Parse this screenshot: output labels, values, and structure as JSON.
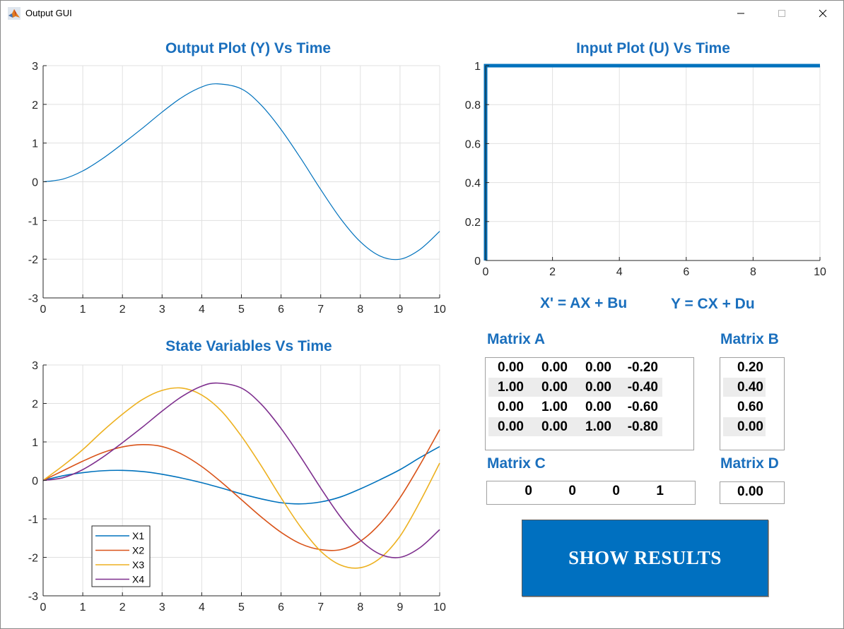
{
  "window": {
    "title": "Output GUI",
    "icon": "matlab-icon"
  },
  "plots": {
    "output": {
      "title": "Output Plot (Y) Vs Time"
    },
    "input": {
      "title": "Input Plot (U) Vs Time"
    },
    "state": {
      "title": "State Variables Vs Time"
    }
  },
  "equations": {
    "state": "X' = AX + Bu",
    "output": "Y  = CX + Du"
  },
  "matrices": {
    "A": {
      "label": "Matrix A",
      "rows": [
        [
          "0.00",
          "0.00",
          "0.00",
          "-0.20"
        ],
        [
          "1.00",
          "0.00",
          "0.00",
          "-0.40"
        ],
        [
          "0.00",
          "1.00",
          "0.00",
          "-0.60"
        ],
        [
          "0.00",
          "0.00",
          "1.00",
          "-0.80"
        ]
      ]
    },
    "B": {
      "label": "Matrix B",
      "rows": [
        [
          "0.20"
        ],
        [
          "0.40"
        ],
        [
          "0.60"
        ],
        [
          "0.00"
        ]
      ]
    },
    "C": {
      "label": "Matrix C",
      "rows": [
        [
          "0",
          "0",
          "0",
          "1"
        ]
      ]
    },
    "D": {
      "label": "Matrix D",
      "rows": [
        [
          "0.00"
        ]
      ]
    }
  },
  "buttons": {
    "show_results": "SHOW RESULTS"
  },
  "chart_data": [
    {
      "type": "line",
      "title": "Output Plot (Y) Vs Time",
      "xlabel": "",
      "ylabel": "",
      "xlim": [
        0,
        10
      ],
      "ylim": [
        -3,
        3
      ],
      "xticks": [
        "0",
        "1",
        "2",
        "3",
        "4",
        "5",
        "6",
        "7",
        "8",
        "9",
        "10"
      ],
      "yticks": [
        "3",
        "2",
        "1",
        "0",
        "-1",
        "-2",
        "-3"
      ],
      "grid": true,
      "series": [
        {
          "color": "#0072bd",
          "x": [
            0,
            0.5,
            1,
            1.5,
            2,
            2.5,
            3,
            3.5,
            4,
            4.4,
            5,
            5.5,
            6,
            6.5,
            7,
            7.5,
            8,
            8.5,
            9,
            9.5,
            10
          ],
          "values": [
            0,
            0.07,
            0.28,
            0.6,
            0.98,
            1.38,
            1.8,
            2.18,
            2.45,
            2.53,
            2.4,
            1.98,
            1.35,
            0.6,
            -0.2,
            -0.95,
            -1.55,
            -1.92,
            -2,
            -1.75,
            -1.28
          ]
        }
      ]
    },
    {
      "type": "line",
      "title": "Input Plot (U) Vs Time",
      "xlabel": "",
      "ylabel": "",
      "xlim": [
        0,
        10
      ],
      "ylim": [
        0,
        1
      ],
      "xticks": [
        "0",
        "2",
        "4",
        "6",
        "8",
        "10"
      ],
      "yticks": [
        "1",
        "0.8",
        "0.6",
        "0.4",
        "0.2",
        "0"
      ],
      "grid": true,
      "series": [
        {
          "color": "#0072bd",
          "x": [
            0,
            0,
            10
          ],
          "values": [
            0,
            1,
            1
          ]
        }
      ]
    },
    {
      "type": "line",
      "title": "State Variables Vs Time",
      "xlabel": "",
      "ylabel": "",
      "xlim": [
        0,
        10
      ],
      "ylim": [
        -3,
        3
      ],
      "xticks": [
        "0",
        "1",
        "2",
        "3",
        "4",
        "5",
        "6",
        "7",
        "8",
        "9",
        "10"
      ],
      "yticks": [
        "3",
        "2",
        "1",
        "0",
        "-1",
        "-2",
        "-3"
      ],
      "grid": true,
      "legend": "bottom-left",
      "series": [
        {
          "name": "X1",
          "color": "#0072bd",
          "x": [
            0,
            0.5,
            1,
            1.5,
            2,
            2.5,
            3,
            3.5,
            4,
            4.5,
            5,
            5.5,
            6,
            6.5,
            7,
            7.5,
            8,
            8.5,
            9,
            9.5,
            10
          ],
          "values": [
            0,
            0.12,
            0.2,
            0.25,
            0.26,
            0.23,
            0.16,
            0.06,
            -0.06,
            -0.2,
            -0.35,
            -0.48,
            -0.58,
            -0.61,
            -0.56,
            -0.43,
            -0.22,
            0.02,
            0.28,
            0.59,
            0.88
          ]
        },
        {
          "name": "X2",
          "color": "#d95319",
          "x": [
            0,
            0.5,
            1,
            1.5,
            2,
            2.5,
            3,
            3.5,
            4,
            4.5,
            5,
            5.5,
            6,
            6.5,
            7,
            7.5,
            8,
            8.5,
            9,
            9.5,
            10
          ],
          "values": [
            0,
            0.25,
            0.5,
            0.72,
            0.87,
            0.93,
            0.88,
            0.68,
            0.36,
            -0.05,
            -0.5,
            -0.95,
            -1.35,
            -1.65,
            -1.8,
            -1.8,
            -1.58,
            -1.12,
            -0.45,
            0.4,
            1.32
          ]
        },
        {
          "name": "X3",
          "color": "#edb120",
          "x": [
            0,
            0.5,
            1,
            1.5,
            2,
            2.5,
            3,
            3.5,
            4,
            4.5,
            5,
            5.5,
            6,
            6.5,
            7,
            7.5,
            8,
            8.5,
            9,
            9.5,
            10
          ],
          "values": [
            0,
            0.38,
            0.8,
            1.28,
            1.72,
            2.1,
            2.34,
            2.4,
            2.22,
            1.8,
            1.15,
            0.38,
            -0.45,
            -1.22,
            -1.84,
            -2.2,
            -2.27,
            -2.02,
            -1.45,
            -0.56,
            0.45
          ]
        },
        {
          "name": "X4",
          "color": "#7e2f8e",
          "x": [
            0,
            0.5,
            1,
            1.5,
            2,
            2.5,
            3,
            3.5,
            4,
            4.4,
            5,
            5.5,
            6,
            6.5,
            7,
            7.5,
            8,
            8.5,
            9,
            9.5,
            10
          ],
          "values": [
            0,
            0.07,
            0.28,
            0.6,
            0.98,
            1.38,
            1.8,
            2.18,
            2.45,
            2.53,
            2.4,
            1.98,
            1.35,
            0.6,
            -0.2,
            -0.95,
            -1.55,
            -1.92,
            -2,
            -1.75,
            -1.28
          ]
        }
      ]
    }
  ]
}
